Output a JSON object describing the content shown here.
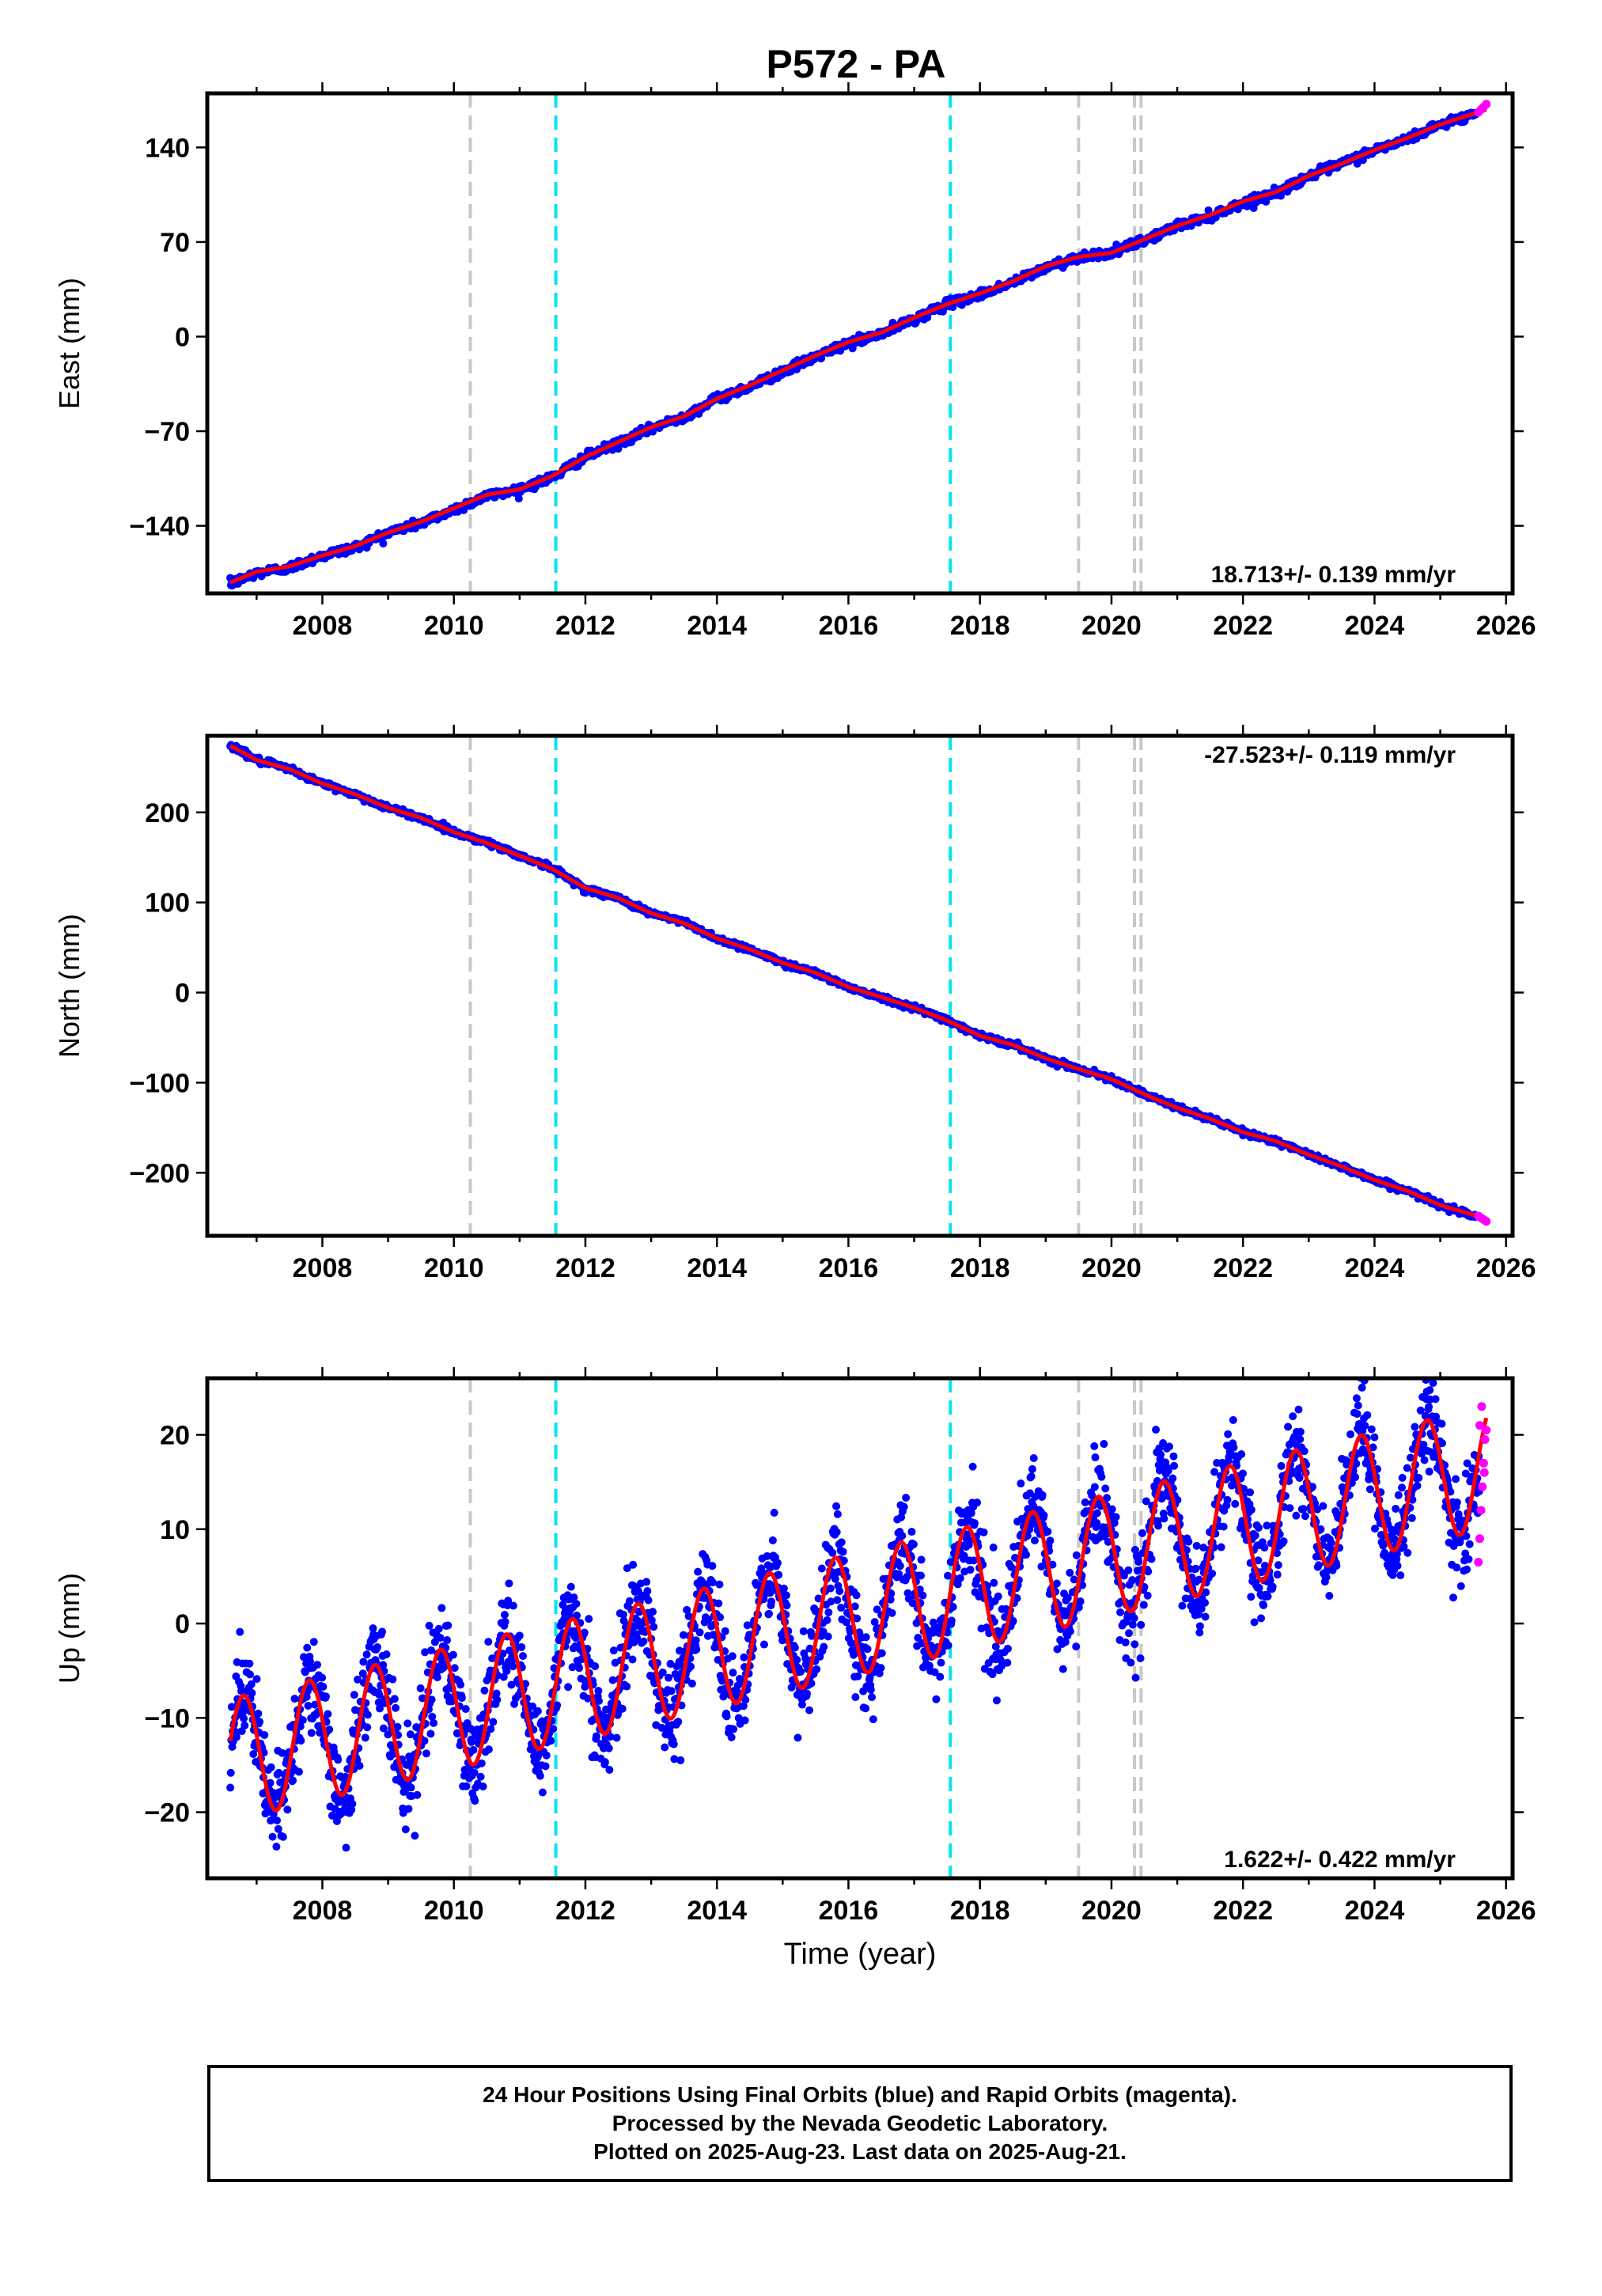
{
  "chart_data": [
    {
      "type": "scatter",
      "panel": "east",
      "title": "P572 - PA",
      "ylabel": "East (mm)",
      "xlabel": "",
      "xlim": [
        2006.25,
        2026.1
      ],
      "ylim": [
        -190,
        180
      ],
      "xticks": [
        2008,
        2010,
        2012,
        2014,
        2016,
        2018,
        2020,
        2022,
        2024,
        2026
      ],
      "yticks": [
        -140,
        -70,
        0,
        70,
        140
      ],
      "ytick_labels": [
        "−140",
        "−70",
        "0",
        "70",
        "140"
      ],
      "rate_label": "18.713+/- 0.139 mm/yr",
      "rate_position": "bottom-right",
      "grid": false,
      "series": [
        {
          "kind": "final_orbits",
          "color": "#0000ff",
          "x": [
            2006.6,
            2007.0,
            2007.5,
            2008.0,
            2008.5,
            2009.0,
            2009.5,
            2010.0,
            2010.5,
            2011.0,
            2011.5,
            2012.0,
            2012.5,
            2013.0,
            2013.5,
            2014.0,
            2014.5,
            2015.0,
            2015.5,
            2016.0,
            2016.5,
            2017.0,
            2017.5,
            2018.0,
            2018.5,
            2019.0,
            2019.5,
            2020.0,
            2020.5,
            2021.0,
            2021.5,
            2022.0,
            2022.5,
            2023.0,
            2023.5,
            2024.0,
            2024.5,
            2025.0,
            2025.55
          ],
          "y": [
            -183,
            -175,
            -171,
            -162,
            -156,
            -145,
            -138,
            -128,
            -118,
            -113,
            -104,
            -89,
            -79,
            -68,
            -59,
            -46,
            -37,
            -26,
            -15,
            -5,
            2,
            13,
            24,
            31,
            40,
            51,
            59,
            62,
            71,
            82,
            89,
            99,
            106,
            119,
            128,
            138,
            146,
            157,
            165
          ]
        },
        {
          "kind": "rapid_orbits",
          "color": "#ff00ff",
          "x": [
            2025.58,
            2025.62,
            2025.66,
            2025.7
          ],
          "y": [
            166,
            168,
            170,
            172
          ]
        },
        {
          "kind": "model_fit",
          "color": "#ff0000",
          "x": [
            2006.6,
            2007.0,
            2007.5,
            2008.0,
            2008.5,
            2009.0,
            2009.5,
            2010.0,
            2010.5,
            2011.0,
            2011.5,
            2012.0,
            2012.5,
            2013.0,
            2013.5,
            2014.0,
            2014.5,
            2015.0,
            2015.5,
            2016.0,
            2016.5,
            2017.0,
            2017.5,
            2018.0,
            2018.5,
            2019.0,
            2019.5,
            2020.0,
            2020.5,
            2021.0,
            2021.5,
            2022.0,
            2022.5,
            2023.0,
            2023.5,
            2024.0,
            2024.5,
            2025.0,
            2025.7
          ],
          "y": [
            -182,
            -174,
            -170,
            -162,
            -155,
            -145,
            -137,
            -127,
            -117,
            -113,
            -103,
            -89,
            -78,
            -67,
            -59,
            -46,
            -36,
            -25,
            -14,
            -4,
            3,
            14,
            24,
            32,
            41,
            52,
            59,
            62,
            72,
            82,
            90,
            100,
            107,
            119,
            128,
            138,
            147,
            157,
            168
          ]
        }
      ]
    },
    {
      "type": "scatter",
      "panel": "north",
      "ylabel": "North (mm)",
      "xlabel": "",
      "xlim": [
        2006.25,
        2026.1
      ],
      "ylim": [
        -270,
        285
      ],
      "xticks": [
        2008,
        2010,
        2012,
        2014,
        2016,
        2018,
        2020,
        2022,
        2024,
        2026
      ],
      "yticks": [
        -200,
        -100,
        0,
        100,
        200
      ],
      "ytick_labels": [
        "−200",
        "−100",
        "0",
        "100",
        "200"
      ],
      "rate_label": "-27.523+/- 0.119 mm/yr",
      "rate_position": "top-right",
      "grid": false,
      "series": [
        {
          "kind": "final_orbits",
          "color": "#0000ff",
          "x": [
            2006.6,
            2007.0,
            2007.5,
            2008.0,
            2008.5,
            2009.0,
            2009.5,
            2010.0,
            2010.5,
            2011.0,
            2011.5,
            2012.0,
            2012.5,
            2013.0,
            2013.5,
            2014.0,
            2014.5,
            2015.0,
            2015.5,
            2016.0,
            2016.5,
            2017.0,
            2017.5,
            2018.0,
            2018.5,
            2019.0,
            2019.5,
            2020.0,
            2020.5,
            2021.0,
            2021.5,
            2022.0,
            2022.5,
            2023.0,
            2023.5,
            2024.0,
            2024.5,
            2025.0,
            2025.55
          ],
          "y": [
            275,
            258,
            248,
            232,
            220,
            205,
            194,
            178,
            167,
            152,
            138,
            115,
            105,
            88,
            78,
            60,
            48,
            33,
            22,
            6,
            -5,
            -17,
            -30,
            -48,
            -58,
            -73,
            -85,
            -95,
            -113,
            -128,
            -140,
            -155,
            -165,
            -180,
            -193,
            -208,
            -220,
            -236,
            -248
          ]
        },
        {
          "kind": "rapid_orbits",
          "color": "#ff00ff",
          "x": [
            2025.58,
            2025.62,
            2025.66,
            2025.7
          ],
          "y": [
            -248,
            -250,
            -252,
            -254
          ]
        },
        {
          "kind": "model_fit",
          "color": "#ff0000",
          "x": [
            2006.6,
            2007.0,
            2007.5,
            2008.0,
            2008.5,
            2009.0,
            2009.5,
            2010.0,
            2010.5,
            2011.0,
            2011.5,
            2012.0,
            2012.5,
            2013.0,
            2013.5,
            2014.0,
            2014.5,
            2015.0,
            2015.5,
            2016.0,
            2016.5,
            2017.0,
            2017.5,
            2018.0,
            2018.5,
            2019.0,
            2019.5,
            2020.0,
            2020.5,
            2021.0,
            2021.5,
            2022.0,
            2022.5,
            2023.0,
            2023.5,
            2024.0,
            2024.5,
            2025.0,
            2025.7
          ],
          "y": [
            274,
            258,
            248,
            232,
            220,
            205,
            194,
            178,
            166,
            152,
            137,
            116,
            105,
            88,
            77,
            60,
            48,
            33,
            22,
            6,
            -5,
            -17,
            -31,
            -48,
            -58,
            -73,
            -85,
            -96,
            -113,
            -128,
            -140,
            -155,
            -165,
            -180,
            -193,
            -208,
            -220,
            -236,
            -251
          ]
        }
      ]
    },
    {
      "type": "scatter",
      "panel": "up",
      "ylabel": "Up (mm)",
      "xlabel": "Time (year)",
      "xlim": [
        2006.25,
        2026.1
      ],
      "ylim": [
        -27,
        26
      ],
      "xticks": [
        2008,
        2010,
        2012,
        2014,
        2016,
        2018,
        2020,
        2022,
        2024,
        2026
      ],
      "yticks": [
        -20,
        -10,
        0,
        10,
        20
      ],
      "ytick_labels": [
        "−20",
        "−10",
        "0",
        "10",
        "20"
      ],
      "rate_label": "1.622+/- 0.422 mm/yr",
      "rate_position": "bottom-right",
      "grid": false,
      "seasonal_fit": {
        "rate": 1.622,
        "annual_amplitude": 6.5,
        "intercept_at_2016": 0.8,
        "phase_peak_fraction": 0.8
      },
      "scatter_spread": 5.5,
      "series": [
        {
          "kind": "final_orbits",
          "color": "#0000ff",
          "x_range": [
            2006.6,
            2025.6
          ]
        },
        {
          "kind": "rapid_orbits",
          "color": "#ff00ff",
          "x": [
            2025.58,
            2025.6,
            2025.62,
            2025.64,
            2025.66,
            2025.68,
            2025.7,
            2025.6,
            2025.63,
            2025.67
          ],
          "y": [
            6.5,
            9.0,
            12.0,
            14.5,
            17.0,
            19.5,
            20.5,
            21.0,
            23.0,
            16.0
          ]
        },
        {
          "kind": "model_fit",
          "color": "#ff0000",
          "x_range": [
            2006.6,
            2025.7
          ]
        }
      ]
    }
  ],
  "event_lines": [
    {
      "kind": "equipment",
      "color": "#c8c8c8",
      "x": 2010.25
    },
    {
      "kind": "earthquake",
      "color": "#00e5ee",
      "x": 2011.55
    },
    {
      "kind": "earthquake",
      "color": "#00e5ee",
      "x": 2017.55
    },
    {
      "kind": "equipment",
      "color": "#c8c8c8",
      "x": 2019.5
    },
    {
      "kind": "equipment",
      "color": "#c8c8c8",
      "x": 2020.35
    },
    {
      "kind": "equipment",
      "color": "#c8c8c8",
      "x": 2020.45
    }
  ],
  "footer": {
    "line1": "24 Hour Positions Using Final Orbits (blue) and Rapid Orbits (magenta).",
    "line2": "Processed by the Nevada Geodetic Laboratory.",
    "line3": "Plotted on 2025-Aug-23. Last data on 2025-Aug-21."
  }
}
